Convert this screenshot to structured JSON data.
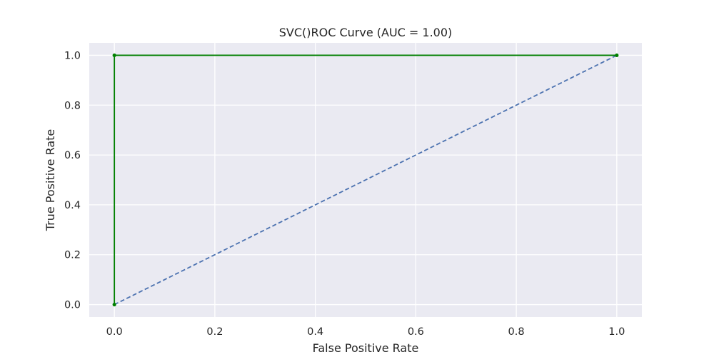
{
  "chart_data": {
    "type": "line",
    "title": "SVC()ROC Curve (AUC = 1.00)",
    "xlabel": "False Positive Rate",
    "ylabel": "True Positive Rate",
    "xlim": [
      -0.05,
      1.05
    ],
    "ylim": [
      -0.05,
      1.05
    ],
    "x_ticks": [
      0.0,
      0.2,
      0.4,
      0.6,
      0.8,
      1.0
    ],
    "y_ticks": [
      0.0,
      0.2,
      0.4,
      0.6,
      0.8,
      1.0
    ],
    "x_tick_labels": [
      "0.0",
      "0.2",
      "0.4",
      "0.6",
      "0.8",
      "1.0"
    ],
    "y_tick_labels": [
      "0.0",
      "0.2",
      "0.4",
      "0.6",
      "0.8",
      "1.0"
    ],
    "grid": true,
    "background": "#eaeaf2",
    "series": [
      {
        "style": "solid",
        "markers": true,
        "color": "#008000",
        "points": [
          [
            0.0,
            0.0
          ],
          [
            0.0,
            1.0
          ],
          [
            1.0,
            1.0
          ]
        ]
      },
      {
        "style": "dashed",
        "markers": false,
        "color": "#4c72b0",
        "points": [
          [
            0.0,
            0.0
          ],
          [
            1.0,
            1.0
          ]
        ]
      }
    ]
  }
}
